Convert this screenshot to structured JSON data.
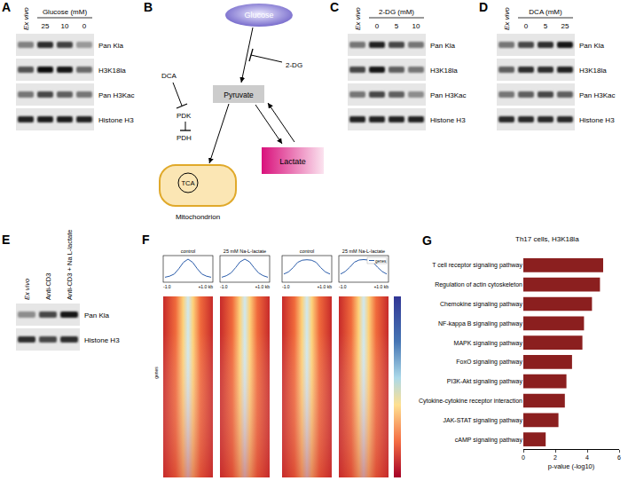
{
  "figure": {
    "A": {
      "letter": "A",
      "header": "Glucose (mM)",
      "lanes": [
        "Ex vivo",
        "25",
        "10",
        "0"
      ],
      "rows": [
        {
          "label": "Pan Kla",
          "intensity": [
            0.45,
            0.8,
            0.72,
            0.35
          ]
        },
        {
          "label": "H3K18la",
          "intensity": [
            0.65,
            0.95,
            0.9,
            0.55
          ]
        },
        {
          "label": "Pan H3Kac",
          "intensity": [
            0.5,
            0.7,
            0.6,
            0.5
          ]
        },
        {
          "label": "Histone H3",
          "intensity": [
            0.85,
            0.88,
            0.88,
            0.85
          ]
        }
      ]
    },
    "B": {
      "letter": "B",
      "glucose": "Glucose",
      "pyruvate": "Pyruvate",
      "lactate": "Lactate",
      "tca": "TCA",
      "mitochondrion": "Mitochondrion",
      "dca": "DCA",
      "pdk": "PDK",
      "pdh": "PDH",
      "inhibitor": "2-DG"
    },
    "C": {
      "letter": "C",
      "header": "2-DG (mM)",
      "lanes": [
        "Ex vivo",
        "0",
        "5",
        "10"
      ],
      "rows": [
        {
          "label": "Pan Kla",
          "intensity": [
            0.5,
            0.85,
            0.7,
            0.5
          ]
        },
        {
          "label": "H3K18la",
          "intensity": [
            0.7,
            0.9,
            0.6,
            0.5
          ]
        },
        {
          "label": "Pan H3Kac",
          "intensity": [
            0.5,
            0.7,
            0.6,
            0.4
          ]
        },
        {
          "label": "Histone H3",
          "intensity": [
            0.85,
            0.85,
            0.85,
            0.85
          ]
        }
      ]
    },
    "D": {
      "letter": "D",
      "header": "DCA (mM)",
      "lanes": [
        "Ex vivo",
        "0",
        "5",
        "25"
      ],
      "rows": [
        {
          "label": "Pan Kla",
          "intensity": [
            0.5,
            0.7,
            0.8,
            0.9
          ]
        },
        {
          "label": "H3K18la",
          "intensity": [
            0.6,
            0.8,
            0.8,
            0.85
          ]
        },
        {
          "label": "Pan H3Kac",
          "intensity": [
            0.5,
            0.6,
            0.7,
            0.6
          ]
        },
        {
          "label": "Histone H3",
          "intensity": [
            0.82,
            0.82,
            0.82,
            0.82
          ]
        }
      ]
    },
    "E": {
      "letter": "E",
      "lanes": [
        "Ex vivo",
        "Anti-CD3",
        "Anti-CD3 + Na L-lactate"
      ],
      "rows": [
        {
          "label": "Pan Kla",
          "intensity": [
            0.4,
            0.7,
            0.9
          ]
        },
        {
          "label": "Histone H3",
          "intensity": [
            0.8,
            0.7,
            0.8
          ]
        }
      ]
    },
    "F": {
      "letter": "F",
      "x_start": "-1.0",
      "x_end": "+1.0 kb",
      "row_label": "genes",
      "profile_ylim": [
        0,
        1
      ],
      "profiles": [
        {
          "title": "control",
          "values": [
            0.15,
            0.2,
            0.3,
            0.55,
            0.85,
            1.0,
            0.85,
            0.55,
            0.3,
            0.2,
            0.15
          ]
        },
        {
          "title": "25 mM Na-L-lactate",
          "values": [
            0.15,
            0.22,
            0.35,
            0.6,
            0.88,
            1.0,
            0.88,
            0.6,
            0.35,
            0.22,
            0.15
          ]
        },
        {
          "title": "control",
          "values": [
            0.3,
            0.4,
            0.6,
            0.85,
            0.95,
            0.97,
            0.95,
            0.85,
            0.6,
            0.4,
            0.3
          ]
        },
        {
          "title": "25 mM Na-L-lactate",
          "values": [
            0.3,
            0.42,
            0.62,
            0.86,
            0.96,
            0.98,
            0.96,
            0.86,
            0.62,
            0.42,
            0.3
          ],
          "legend": "genes"
        }
      ]
    },
    "G": {
      "letter": "G"
    }
  },
  "chart_data": {
    "type": "bar",
    "orientation": "horizontal",
    "title": "Th17 cells, H3K18la",
    "categories": [
      "T cell receptor signaling pathway",
      "Regulation of actin cytoskeleton",
      "Chemokine signaling pathway",
      "NF-kappa B signaling pathway",
      "MAPK signaling pathway",
      "FoxO signaling pathway",
      "PI3K-Akt signaling pathway",
      "Cytokine-cytokine receptor interaction",
      "JAK-STAT signaling pathway",
      "cAMP signaling pathway"
    ],
    "values": [
      5.0,
      4.8,
      4.3,
      3.8,
      3.7,
      3.05,
      2.7,
      2.6,
      2.2,
      1.4
    ],
    "color": "#8b1f1f",
    "xlabel": "p-value (-log10)",
    "xlim": [
      0,
      6
    ],
    "xticks": [
      0,
      2,
      4,
      6
    ],
    "grid": false
  }
}
